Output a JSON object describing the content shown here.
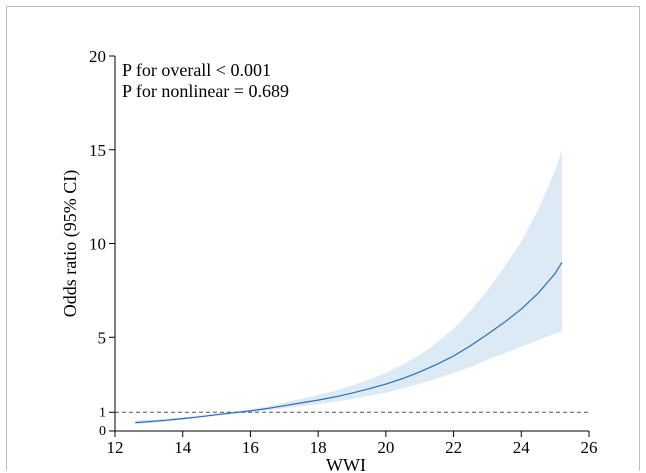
{
  "chart_data": {
    "type": "line",
    "xlabel": "WWI",
    "ylabel": "Odds ratio (95% CI)",
    "xlim": [
      12,
      26
    ],
    "ylim": [
      0,
      20
    ],
    "x_ticks": [
      12,
      14,
      16,
      18,
      20,
      22,
      24,
      26
    ],
    "y_ticks": [
      0,
      1,
      5,
      10,
      15,
      20
    ],
    "reference_line": {
      "y": 1,
      "style": "dashed"
    },
    "annotations": [
      "P for overall < 0.001",
      "P for nonlinear = 0.689"
    ],
    "line_color": "#2e6fb2",
    "band_color": "#dceaf5",
    "x": [
      12.6,
      13.0,
      13.5,
      14.0,
      14.5,
      15.0,
      15.5,
      16.0,
      16.5,
      17.0,
      17.5,
      18.0,
      18.5,
      19.0,
      19.5,
      20.0,
      20.5,
      21.0,
      21.5,
      22.0,
      22.5,
      23.0,
      23.5,
      24.0,
      24.5,
      25.0,
      25.2
    ],
    "y": [
      0.45,
      0.5,
      0.57,
      0.66,
      0.76,
      0.87,
      0.97,
      1.07,
      1.2,
      1.35,
      1.5,
      1.65,
      1.82,
      2.02,
      2.25,
      2.5,
      2.8,
      3.15,
      3.55,
      4.0,
      4.55,
      5.15,
      5.8,
      6.5,
      7.35,
      8.4,
      9.0
    ],
    "lower": [
      0.35,
      0.42,
      0.5,
      0.59,
      0.7,
      0.81,
      0.91,
      1.01,
      1.11,
      1.21,
      1.32,
      1.43,
      1.56,
      1.7,
      1.88,
      2.05,
      2.28,
      2.52,
      2.8,
      3.1,
      3.42,
      3.8,
      4.15,
      4.5,
      4.85,
      5.2,
      5.3
    ],
    "upper": [
      0.55,
      0.6,
      0.65,
      0.73,
      0.82,
      0.93,
      1.04,
      1.16,
      1.31,
      1.52,
      1.72,
      1.92,
      2.15,
      2.42,
      2.75,
      3.1,
      3.55,
      4.05,
      4.7,
      5.45,
      6.4,
      7.5,
      8.75,
      10.1,
      11.8,
      13.9,
      15.0
    ]
  }
}
